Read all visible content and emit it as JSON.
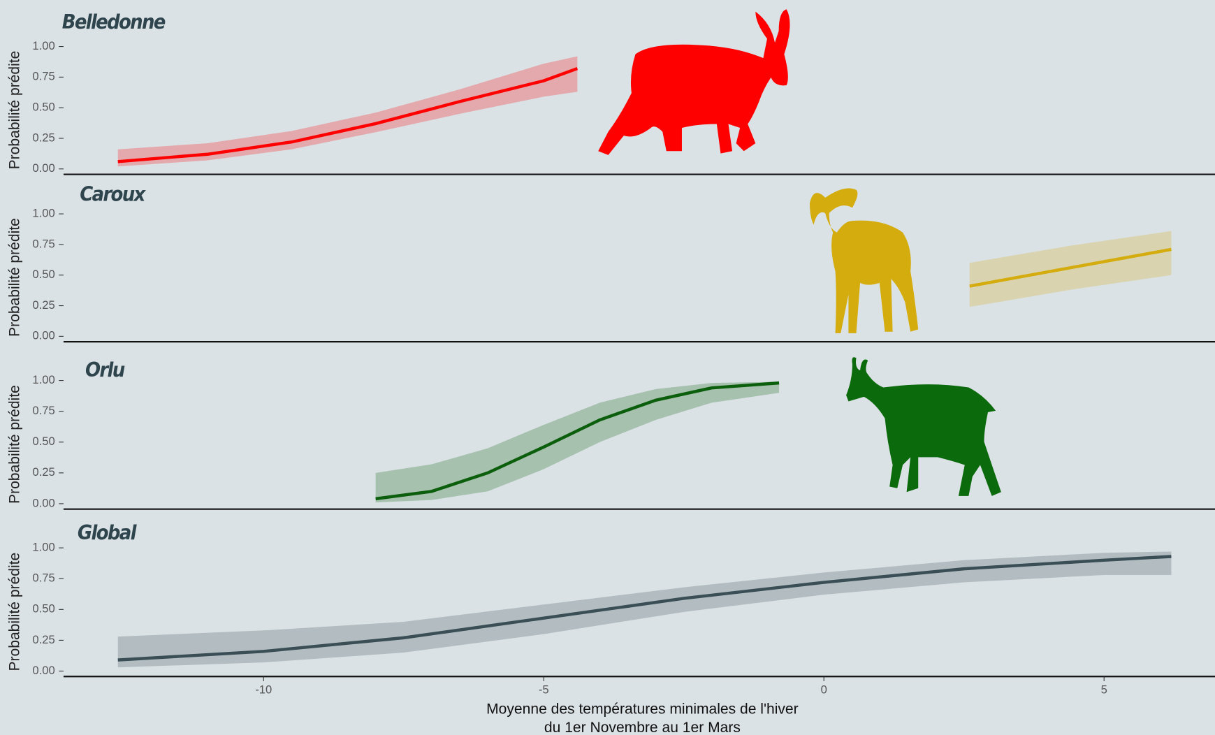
{
  "chart_data": [
    {
      "type": "line",
      "title": "Belledonne",
      "ylabel": "Probabilité prédite",
      "color": "#ff0000",
      "x": [
        -12.6,
        -11,
        -9.5,
        -8,
        -6.5,
        -5,
        -4.4
      ],
      "values": [
        0.06,
        0.12,
        0.22,
        0.37,
        0.55,
        0.72,
        0.82
      ],
      "lower": [
        0.02,
        0.07,
        0.16,
        0.3,
        0.45,
        0.59,
        0.63
      ],
      "upper": [
        0.16,
        0.21,
        0.31,
        0.46,
        0.65,
        0.86,
        0.92
      ],
      "xlim": [
        -13.57,
        6.98
      ],
      "ylim": [
        -0.045,
        1.05
      ],
      "yticks": [
        {
          "value": 0,
          "label": "0.00"
        },
        {
          "value": 0.25,
          "label": "0.25"
        },
        {
          "value": 0.5,
          "label": "0.50"
        },
        {
          "value": 0.75,
          "label": "0.75"
        },
        {
          "value": 1,
          "label": "1.00"
        }
      ]
    },
    {
      "type": "line",
      "title": "Caroux",
      "ylabel": "Probabilité prédite",
      "color": "#d4ac0d",
      "x": [
        2.6,
        4.4,
        6.2
      ],
      "values": [
        0.41,
        0.56,
        0.71
      ],
      "lower": [
        0.24,
        0.38,
        0.5
      ],
      "upper": [
        0.6,
        0.74,
        0.86
      ],
      "xlim": [
        -13.57,
        6.98
      ],
      "ylim": [
        -0.045,
        1.05
      ],
      "yticks": [
        {
          "value": 0,
          "label": "0.00"
        },
        {
          "value": 0.25,
          "label": "0.25"
        },
        {
          "value": 0.5,
          "label": "0.50"
        },
        {
          "value": 0.75,
          "label": "0.75"
        },
        {
          "value": 1,
          "label": "1.00"
        }
      ]
    },
    {
      "type": "line",
      "title": "Orlu",
      "ylabel": "Probabilité prédite",
      "color": "#0b5e0b",
      "x": [
        -8,
        -7,
        -6,
        -5,
        -4,
        -3,
        -2,
        -0.8
      ],
      "values": [
        0.04,
        0.1,
        0.25,
        0.46,
        0.68,
        0.84,
        0.94,
        0.98
      ],
      "lower": [
        0.01,
        0.03,
        0.1,
        0.28,
        0.5,
        0.68,
        0.82,
        0.9
      ],
      "upper": [
        0.25,
        0.32,
        0.45,
        0.64,
        0.82,
        0.93,
        0.98,
        0.99
      ],
      "xlim": [
        -13.57,
        6.98
      ],
      "ylim": [
        -0.045,
        1.05
      ],
      "yticks": [
        {
          "value": 0,
          "label": "0.00"
        },
        {
          "value": 0.25,
          "label": "0.25"
        },
        {
          "value": 0.5,
          "label": "0.50"
        },
        {
          "value": 0.75,
          "label": "0.75"
        },
        {
          "value": 1,
          "label": "1.00"
        }
      ]
    },
    {
      "type": "line",
      "title": "Global",
      "ylabel": "Probabilité prédite",
      "color": "#3a4e55",
      "x": [
        -12.6,
        -10,
        -7.5,
        -5,
        -2.5,
        0,
        2.5,
        5,
        6.2
      ],
      "values": [
        0.09,
        0.16,
        0.27,
        0.43,
        0.59,
        0.72,
        0.83,
        0.9,
        0.93
      ],
      "lower": [
        0.03,
        0.07,
        0.15,
        0.3,
        0.48,
        0.62,
        0.72,
        0.78,
        0.78
      ],
      "upper": [
        0.28,
        0.33,
        0.4,
        0.54,
        0.68,
        0.8,
        0.9,
        0.96,
        0.97
      ],
      "xlim": [
        -13.57,
        6.98
      ],
      "ylim": [
        -0.045,
        1.05
      ],
      "yticks": [
        {
          "value": 0,
          "label": "0.00"
        },
        {
          "value": 0.25,
          "label": "0.25"
        },
        {
          "value": 0.5,
          "label": "0.50"
        },
        {
          "value": 0.75,
          "label": "0.75"
        },
        {
          "value": 1,
          "label": "1.00"
        }
      ],
      "xticks": [
        -10,
        -5,
        0,
        5
      ],
      "xlabel": [
        "Moyenne des températures minimales de l'hiver",
        "du 1er Novembre au 1er Mars"
      ]
    }
  ]
}
